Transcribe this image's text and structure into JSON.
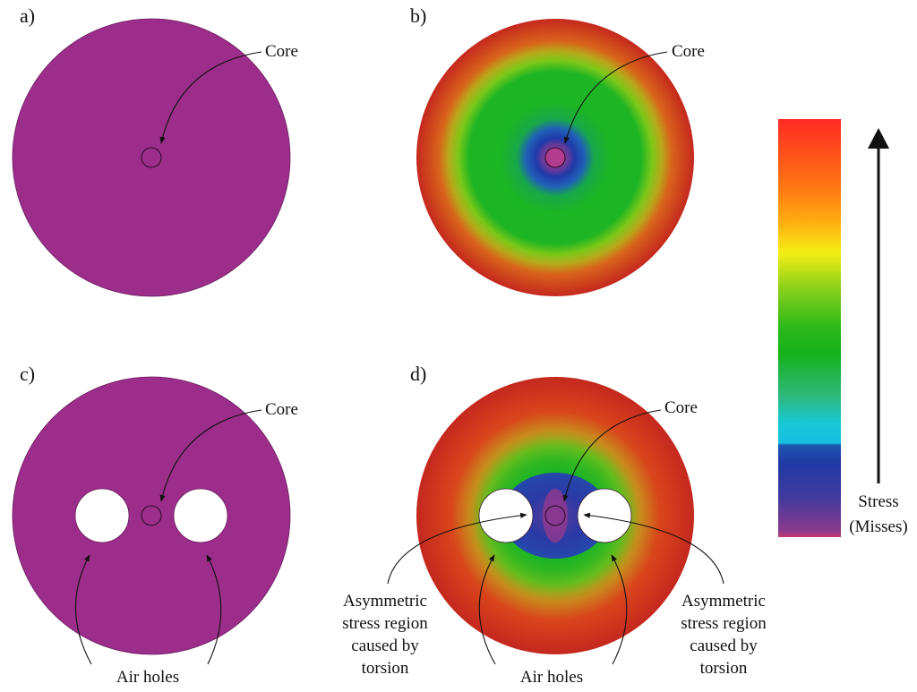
{
  "panels": {
    "a": {
      "label": "a)",
      "core_label": "Core"
    },
    "b": {
      "label": "b)",
      "core_label": "Core"
    },
    "c": {
      "label": "c)",
      "core_label": "Core",
      "holes_label": "Air holes"
    },
    "d": {
      "label": "d)",
      "core_label": "Core",
      "holes_label": "Air holes",
      "asym_left": [
        "Asymmetric",
        "stress region",
        "caused by",
        "torsion"
      ],
      "asym_right": [
        "Asymmetric",
        "stress region",
        "caused by",
        "torsion"
      ]
    }
  },
  "colorbar": {
    "title_line1": "Stress",
    "title_line2": "(Misses)",
    "stops": [
      "#8b3a8f",
      "#1d4fa8",
      "#17c8e0",
      "#2fb87a",
      "#16b21a",
      "#8fd21a",
      "#f4ee14",
      "#ff8a10",
      "#ff2a24"
    ]
  },
  "colors": {
    "fiber_unstressed": "#9c2d8a",
    "stress_low": "#8b3a8f",
    "stress_blue": "#1f3aa8",
    "stress_green": "#1cb523",
    "stress_high": "#c4281e"
  }
}
